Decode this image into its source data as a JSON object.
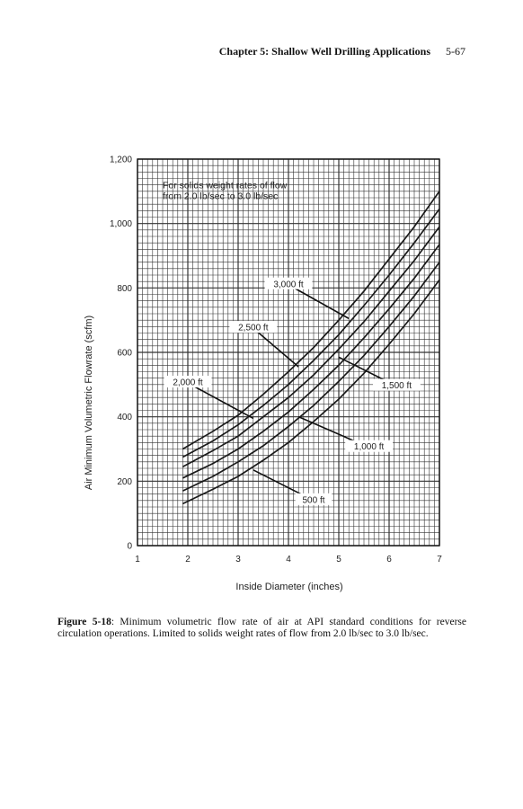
{
  "header": {
    "chapter_title": "Chapter 5: Shallow Well Drilling Applications",
    "page_number": "5-67"
  },
  "caption": {
    "figure_label": "Figure 5-18",
    "text": ": Minimum volumetric flow rate of air at API standard conditions for reverse circulation operations. Limited to solids weight rates of flow from 2.0 lb/sec to 3.0 lb/sec."
  },
  "chart_data": {
    "type": "line",
    "title": "",
    "xlabel": "Inside Diameter (inches)",
    "ylabel": "Air Minimum Volumetric Flowrate (scfm)",
    "xlim": [
      1,
      7
    ],
    "ylim": [
      0,
      1200
    ],
    "xticks": [
      "1",
      "2",
      "3",
      "4",
      "5",
      "6",
      "7"
    ],
    "yticks": [
      "0",
      "200",
      "400",
      "600",
      "800",
      "1,000",
      "1,200"
    ],
    "grid": true,
    "note": [
      "For solids weight rates of flow",
      "from 2.0 lb/sec to 3.0 lb/sec"
    ],
    "series": [
      {
        "name": "500 ft",
        "x": [
          1.9,
          2.5,
          3.0,
          3.5,
          4.0,
          4.5,
          5.0,
          5.5,
          6.0,
          6.5,
          7.0
        ],
        "y": [
          130,
          175,
          215,
          265,
          320,
          385,
          455,
          535,
          625,
          720,
          825
        ]
      },
      {
        "name": "1,000 ft",
        "x": [
          1.9,
          2.5,
          3.0,
          3.5,
          4.0,
          4.5,
          5.0,
          5.5,
          6.0,
          6.5,
          7.0
        ],
        "y": [
          170,
          215,
          260,
          310,
          370,
          435,
          510,
          590,
          680,
          775,
          880
        ]
      },
      {
        "name": "1,500 ft",
        "x": [
          1.9,
          2.5,
          3.0,
          3.5,
          4.0,
          4.5,
          5.0,
          5.5,
          6.0,
          6.5,
          7.0
        ],
        "y": [
          210,
          255,
          300,
          355,
          415,
          485,
          560,
          645,
          735,
          830,
          935
        ]
      },
      {
        "name": "2,000 ft",
        "x": [
          1.9,
          2.5,
          3.0,
          3.5,
          4.0,
          4.5,
          5.0,
          5.5,
          6.0,
          6.5,
          7.0
        ],
        "y": [
          245,
          295,
          340,
          400,
          460,
          530,
          610,
          695,
          790,
          885,
          990
        ]
      },
      {
        "name": "2,500 ft",
        "x": [
          1.9,
          2.5,
          3.0,
          3.5,
          4.0,
          4.5,
          5.0,
          5.5,
          6.0,
          6.5,
          7.0
        ],
        "y": [
          275,
          325,
          375,
          435,
          500,
          575,
          655,
          745,
          840,
          940,
          1045
        ]
      },
      {
        "name": "3,000 ft",
        "x": [
          1.9,
          2.5,
          3.0,
          3.5,
          4.0,
          4.5,
          5.0,
          5.5,
          6.0,
          6.5,
          7.0
        ],
        "y": [
          300,
          355,
          405,
          470,
          540,
          615,
          700,
          790,
          890,
          990,
          1100
        ]
      }
    ],
    "annotations": [
      {
        "label": "3,000 ft",
        "point_x": 5.2,
        "point_y": 705,
        "label_x": 4.0,
        "label_y": 810
      },
      {
        "label": "2,500 ft",
        "point_x": 4.2,
        "point_y": 555,
        "label_x": 3.3,
        "label_y": 675
      },
      {
        "label": "2,000 ft",
        "point_x": 3.3,
        "point_y": 395,
        "label_x": 2.0,
        "label_y": 505
      },
      {
        "label": "1,500 ft",
        "point_x": 5.0,
        "point_y": 585,
        "label_x": 6.15,
        "label_y": 495
      },
      {
        "label": "1,000 ft",
        "point_x": 4.2,
        "point_y": 400,
        "label_x": 5.6,
        "label_y": 305
      },
      {
        "label": "500 ft",
        "point_x": 3.3,
        "point_y": 235,
        "label_x": 4.5,
        "label_y": 140
      }
    ]
  }
}
